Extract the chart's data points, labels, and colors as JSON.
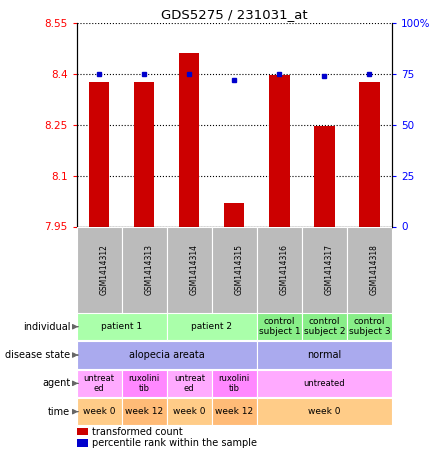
{
  "title": "GDS5275 / 231031_at",
  "samples": [
    "GSM1414312",
    "GSM1414313",
    "GSM1414314",
    "GSM1414315",
    "GSM1414316",
    "GSM1414317",
    "GSM1414318"
  ],
  "red_values": [
    8.375,
    8.375,
    8.46,
    8.02,
    8.395,
    8.245,
    8.375
  ],
  "blue_values": [
    75,
    75,
    75,
    72,
    75,
    74,
    75
  ],
  "ylim_left": [
    7.95,
    8.55
  ],
  "ylim_right": [
    0,
    100
  ],
  "yticks_left": [
    7.95,
    8.1,
    8.25,
    8.4,
    8.55
  ],
  "yticks_right": [
    0,
    25,
    50,
    75,
    100
  ],
  "ytick_labels_left": [
    "7.95",
    "8.1",
    "8.25",
    "8.4",
    "8.55"
  ],
  "ytick_labels_right": [
    "0",
    "25",
    "50",
    "75",
    "100%"
  ],
  "bar_color": "#cc0000",
  "dot_color": "#0000cc",
  "individual_spans": [
    [
      0,
      2,
      "patient 1",
      "#aaffaa"
    ],
    [
      2,
      4,
      "patient 2",
      "#aaffaa"
    ],
    [
      4,
      5,
      "control\nsubject 1",
      "#88ee88"
    ],
    [
      5,
      6,
      "control\nsubject 2",
      "#88ee88"
    ],
    [
      6,
      7,
      "control\nsubject 3",
      "#88ee88"
    ]
  ],
  "disease_state_spans": [
    [
      0,
      4,
      "alopecia areata",
      "#aaaaee"
    ],
    [
      4,
      7,
      "normal",
      "#aaaaee"
    ]
  ],
  "agent_spans": [
    [
      0,
      1,
      "untreat\ned",
      "#ffaaff"
    ],
    [
      1,
      2,
      "ruxolini\ntib",
      "#ff88ff"
    ],
    [
      2,
      3,
      "untreat\ned",
      "#ffaaff"
    ],
    [
      3,
      4,
      "ruxolini\ntib",
      "#ff88ff"
    ],
    [
      4,
      7,
      "untreated",
      "#ffaaff"
    ]
  ],
  "time_spans": [
    [
      0,
      1,
      "week 0",
      "#ffcc88"
    ],
    [
      1,
      2,
      "week 12",
      "#ffbb77"
    ],
    [
      2,
      3,
      "week 0",
      "#ffcc88"
    ],
    [
      3,
      4,
      "week 12",
      "#ffbb77"
    ],
    [
      4,
      7,
      "week 0",
      "#ffcc88"
    ]
  ],
  "row_labels": [
    "individual",
    "disease state",
    "agent",
    "time"
  ],
  "legend_red": "transformed count",
  "legend_blue": "percentile rank within the sample",
  "n_samples": 7,
  "sample_header_color": "#bbbbbb"
}
